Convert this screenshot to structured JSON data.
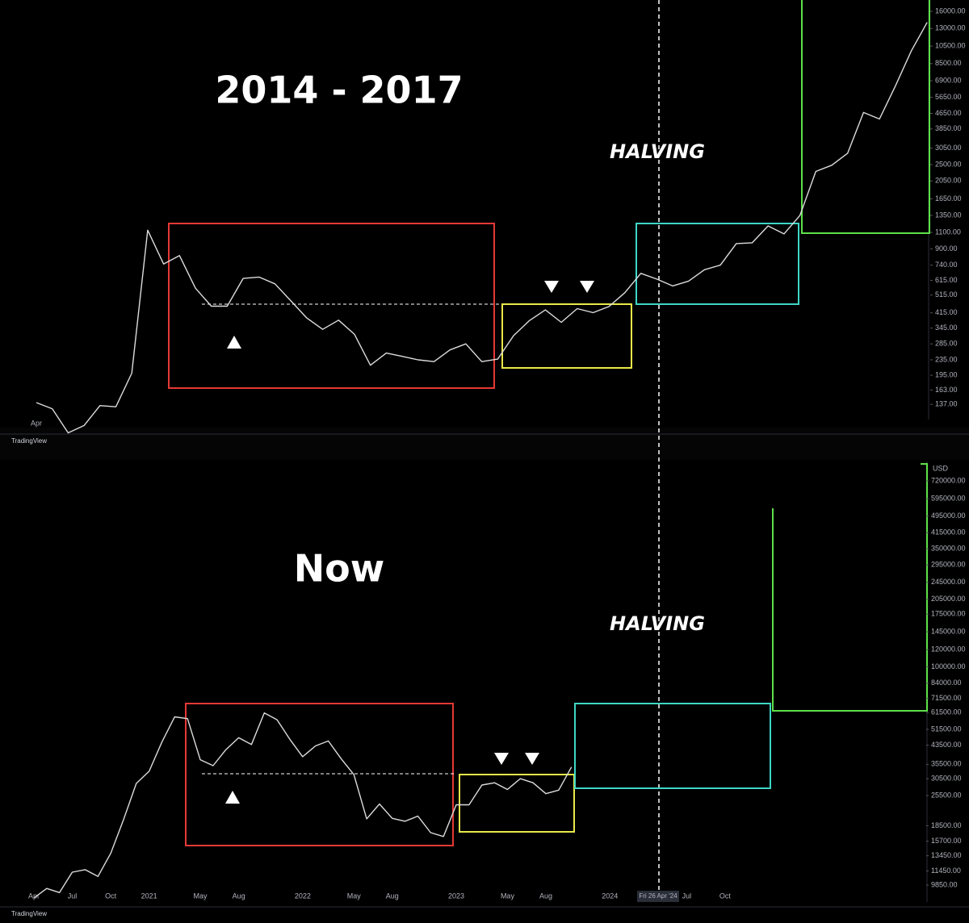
{
  "chart_data": [
    {
      "type": "line",
      "title": "2014 - 2017",
      "annotation": "HALVING",
      "source": "TradingView",
      "log_scale": true,
      "color": "#dcdcdc",
      "categories": [
        "Apr",
        null,
        null,
        null,
        null,
        null,
        null,
        null,
        null,
        null,
        null,
        null,
        null,
        null,
        null,
        null,
        null,
        null,
        null,
        null,
        null,
        null,
        null,
        null,
        null,
        null,
        null,
        null,
        null,
        null,
        null,
        null,
        null,
        null,
        null,
        null,
        null,
        null,
        null,
        null,
        null,
        null,
        null,
        null,
        null,
        null,
        null,
        null,
        null,
        null,
        null,
        null,
        null,
        null,
        null,
        null,
        null
      ],
      "values": [
        140,
        130,
        97,
        106,
        135,
        133,
        200,
        1130,
        750,
        830,
        560,
        450,
        450,
        630,
        640,
        590,
        480,
        390,
        340,
        380,
        320,
        220,
        255,
        245,
        235,
        230,
        265,
        285,
        230,
        237,
        315,
        378,
        430,
        370,
        437,
        416,
        448,
        530,
        670,
        625,
        575,
        610,
        700,
        740,
        960,
        970,
        1190,
        1080,
        1350,
        2300,
        2480,
        2870,
        4700,
        4340,
        6470,
        9900,
        14000
      ],
      "ylim": [
        114,
        18350
      ],
      "yticks": [
        {
          "value": 16000,
          "label": "16000.00"
        },
        {
          "value": 13000,
          "label": "13000.00"
        },
        {
          "value": 10500,
          "label": "10500.00"
        },
        {
          "value": 8500,
          "label": "8500.00"
        },
        {
          "value": 6900,
          "label": "6900.00"
        },
        {
          "value": 5650,
          "label": "5650.00"
        },
        {
          "value": 4650,
          "label": "4650.00"
        },
        {
          "value": 3850,
          "label": "3850.00"
        },
        {
          "value": 3050,
          "label": "3050.00"
        },
        {
          "value": 2500,
          "label": "2500.00"
        },
        {
          "value": 2050,
          "label": "2050.00"
        },
        {
          "value": 1650,
          "label": "1650.00"
        },
        {
          "value": 1350,
          "label": "1350.00"
        },
        {
          "value": 1100,
          "label": "1100.00"
        },
        {
          "value": 900,
          "label": "900.00"
        },
        {
          "value": 740,
          "label": "740.00"
        },
        {
          "value": 615,
          "label": "615.00"
        },
        {
          "value": 515,
          "label": "515.00"
        },
        {
          "value": 415,
          "label": "415.00"
        },
        {
          "value": 345,
          "label": "345.00"
        },
        {
          "value": 285,
          "label": "285.00"
        },
        {
          "value": 235,
          "label": "235.00"
        },
        {
          "value": 195,
          "label": "195.00"
        },
        {
          "value": 163,
          "label": "163.00"
        },
        {
          "value": 137,
          "label": "137.00"
        }
      ]
    },
    {
      "type": "line",
      "title": "Now",
      "annotation": "HALVING",
      "source": "TradingView",
      "currency": "USD",
      "halving_date": "Fri 26 Apr '24",
      "log_scale": true,
      "color": "#dcdcdc",
      "categories": [
        "Apr",
        null,
        null,
        "Jul",
        null,
        null,
        "Oct",
        null,
        null,
        "2021",
        null,
        null,
        null,
        "May",
        null,
        null,
        "Aug",
        null,
        null,
        null,
        null,
        "2022",
        null,
        null,
        null,
        "May",
        null,
        null,
        "Aug",
        null,
        null,
        null,
        null,
        "2023",
        null,
        null,
        null,
        "May",
        null,
        null,
        "Aug",
        null,
        null,
        null,
        null,
        "2024",
        null,
        null,
        null,
        null,
        null,
        "Jul",
        null,
        null,
        "Oct",
        null,
        null
      ],
      "values": [
        8600,
        9500,
        9100,
        11300,
        11600,
        10800,
        13800,
        19700,
        29000,
        33000,
        45000,
        58800,
        57700,
        37300,
        35000,
        41500,
        47100,
        43800,
        61300,
        57000,
        46300,
        38500,
        43200,
        45500,
        37700,
        31800,
        19900,
        23300,
        20000,
        19400,
        20500,
        17200,
        16500,
        23100,
        23100,
        28500,
        29200,
        27200,
        30500,
        29200,
        26000,
        27000,
        34500,
        null,
        null,
        null,
        null,
        null,
        null,
        null,
        null,
        null,
        null,
        null,
        null,
        null,
        null
      ],
      "ylim": [
        8230,
        826000
      ],
      "yticks": [
        {
          "value": 720000,
          "label": "720000.00"
        },
        {
          "value": 595000,
          "label": "595000.00"
        },
        {
          "value": 495000,
          "label": "495000.00"
        },
        {
          "value": 415000,
          "label": "415000.00"
        },
        {
          "value": 350000,
          "label": "350000.00"
        },
        {
          "value": 295000,
          "label": "295000.00"
        },
        {
          "value": 245000,
          "label": "245000.00"
        },
        {
          "value": 205000,
          "label": "205000.00"
        },
        {
          "value": 175000,
          "label": "175000.00"
        },
        {
          "value": 145000,
          "label": "145000.00"
        },
        {
          "value": 120000,
          "label": "120000.00"
        },
        {
          "value": 100000,
          "label": "100000.00"
        },
        {
          "value": 84000,
          "label": "84000.00"
        },
        {
          "value": 71500,
          "label": "71500.00"
        },
        {
          "value": 61500,
          "label": "61500.00"
        },
        {
          "value": 51500,
          "label": "51500.00"
        },
        {
          "value": 43500,
          "label": "43500.00"
        },
        {
          "value": 35500,
          "label": "35500.00"
        },
        {
          "value": 30500,
          "label": "30500.00"
        },
        {
          "value": 25500,
          "label": "25500.00"
        },
        {
          "value": 18500,
          "label": "18500.00"
        },
        {
          "value": 15700,
          "label": "15700.00"
        },
        {
          "value": 13450,
          "label": "13450.00"
        },
        {
          "value": 11450,
          "label": "11450.00"
        },
        {
          "value": 9850,
          "label": "9850.00"
        }
      ]
    }
  ]
}
